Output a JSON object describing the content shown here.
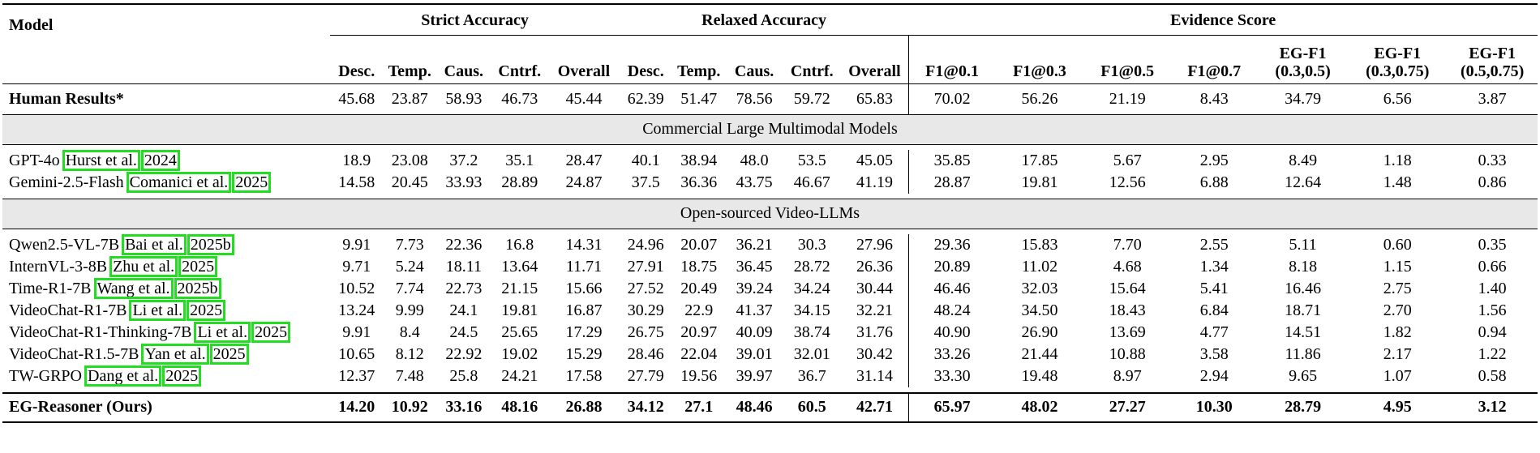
{
  "header": {
    "model": "Model",
    "groups": [
      "Strict Accuracy",
      "Relaxed Accuracy",
      "Evidence Score"
    ],
    "columns": [
      "Desc.",
      "Temp.",
      "Caus.",
      "Cntrf.",
      "Overall",
      "Desc.",
      "Temp.",
      "Caus.",
      "Cntrf.",
      "Overall",
      "F1@0.1",
      "F1@0.3",
      "F1@0.5",
      "F1@0.7",
      "EG-F1 (0.3,0.5)",
      "EG-F1 (0.3,0.75)",
      "EG-F1 (0.5,0.75)"
    ]
  },
  "human": {
    "name": "Human Results*",
    "values": [
      "45.68",
      "23.87",
      "58.93",
      "46.73",
      "45.44",
      "62.39",
      "51.47",
      "78.56",
      "59.72",
      "65.83",
      "70.02",
      "56.26",
      "21.19",
      "8.43",
      "34.79",
      "6.56",
      "3.87"
    ]
  },
  "sections": [
    {
      "title": "Commercial Large Multimodal Models",
      "rows": [
        {
          "name": "GPT-4o",
          "author": "Hurst et al.",
          "year": "2024",
          "values": [
            "18.9",
            "23.08",
            "37.2",
            "35.1",
            "28.47",
            "40.1",
            "38.94",
            "48.0",
            "53.5",
            "45.05",
            "35.85",
            "17.85",
            "5.67",
            "2.95",
            "8.49",
            "1.18",
            "0.33"
          ]
        },
        {
          "name": "Gemini-2.5-Flash",
          "author": "Comanici et al.",
          "year": "2025",
          "values": [
            "14.58",
            "20.45",
            "33.93",
            "28.89",
            "24.87",
            "37.5",
            "36.36",
            "43.75",
            "46.67",
            "41.19",
            "28.87",
            "19.81",
            "12.56",
            "6.88",
            "12.64",
            "1.48",
            "0.86"
          ]
        }
      ]
    },
    {
      "title": "Open-sourced Video-LLMs",
      "rows": [
        {
          "name": "Qwen2.5-VL-7B",
          "author": "Bai et al.",
          "year": "2025b",
          "values": [
            "9.91",
            "7.73",
            "22.36",
            "16.8",
            "14.31",
            "24.96",
            "20.07",
            "36.21",
            "30.3",
            "27.96",
            "29.36",
            "15.83",
            "7.70",
            "2.55",
            "5.11",
            "0.60",
            "0.35"
          ]
        },
        {
          "name": "InternVL-3-8B",
          "author": "Zhu et al.",
          "year": "2025",
          "values": [
            "9.71",
            "5.24",
            "18.11",
            "13.64",
            "11.71",
            "27.91",
            "18.75",
            "36.45",
            "28.72",
            "26.36",
            "20.89",
            "11.02",
            "4.68",
            "1.34",
            "8.18",
            "1.15",
            "0.66"
          ]
        },
        {
          "name": "Time-R1-7B",
          "author": "Wang et al.",
          "year": "2025b",
          "values": [
            "10.52",
            "7.74",
            "22.73",
            "21.15",
            "15.66",
            "27.52",
            "20.49",
            "39.24",
            "34.24",
            "30.44",
            "46.46",
            "32.03",
            "15.64",
            "5.41",
            "16.46",
            "2.75",
            "1.40"
          ]
        },
        {
          "name": "VideoChat-R1-7B",
          "author": "Li et al.",
          "year": "2025",
          "values": [
            "13.24",
            "9.99",
            "24.1",
            "19.81",
            "16.87",
            "30.29",
            "22.9",
            "41.37",
            "34.15",
            "32.21",
            "48.24",
            "34.50",
            "18.43",
            "6.84",
            "18.71",
            "2.70",
            "1.56"
          ]
        },
        {
          "name": "VideoChat-R1-Thinking-7B",
          "author": "Li et al.",
          "year": "2025",
          "values": [
            "9.91",
            "8.4",
            "24.5",
            "25.65",
            "17.29",
            "26.75",
            "20.97",
            "40.09",
            "38.74",
            "31.76",
            "40.90",
            "26.90",
            "13.69",
            "4.77",
            "14.51",
            "1.82",
            "0.94"
          ]
        },
        {
          "name": "VideoChat-R1.5-7B",
          "author": "Yan et al.",
          "year": "2025",
          "values": [
            "10.65",
            "8.12",
            "22.92",
            "19.02",
            "15.29",
            "28.46",
            "22.04",
            "39.01",
            "32.01",
            "30.42",
            "33.26",
            "21.44",
            "10.88",
            "3.58",
            "11.86",
            "2.17",
            "1.22"
          ]
        },
        {
          "name": "TW-GRPO",
          "author": "Dang et al.",
          "year": "2025",
          "values": [
            "12.37",
            "7.48",
            "25.8",
            "24.21",
            "17.58",
            "27.79",
            "19.56",
            "39.97",
            "36.7",
            "31.14",
            "33.30",
            "19.48",
            "8.97",
            "2.94",
            "9.65",
            "1.07",
            "0.58"
          ]
        }
      ]
    }
  ],
  "ours": {
    "name": "EG-Reasoner (Ours)",
    "values": [
      "14.20",
      "10.92",
      "33.16",
      "48.16",
      "26.88",
      "34.12",
      "27.1",
      "48.46",
      "60.5",
      "42.71",
      "65.97",
      "48.02",
      "27.27",
      "10.30",
      "28.79",
      "4.95",
      "3.12"
    ]
  },
  "colors": {
    "citation_box": "#22dd22",
    "section_bg": "#e8e8e8"
  }
}
